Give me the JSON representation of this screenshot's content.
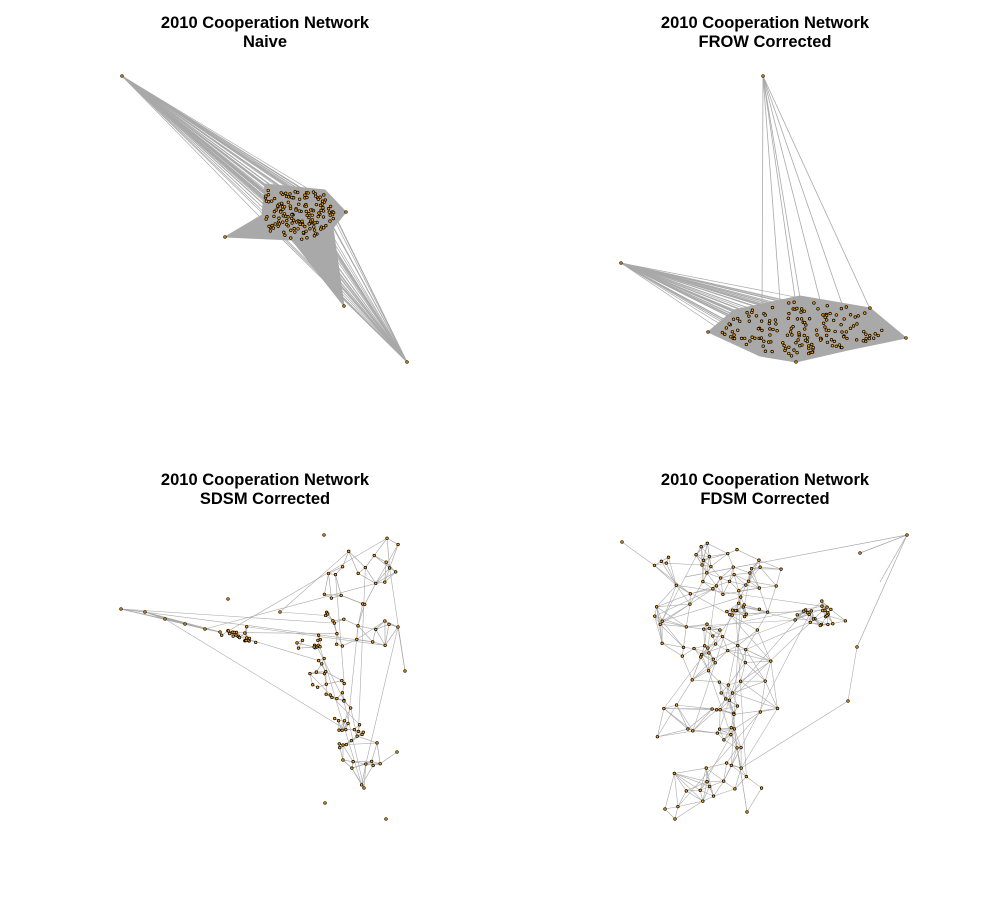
{
  "colors": {
    "edge": "#a9a9a9",
    "node": "#ffa500",
    "node_border": "#000000",
    "background": "#ffffff"
  },
  "panels": [
    {
      "title": "2010 Cooperation Network",
      "subtitle": "Naive"
    },
    {
      "title": "2010 Cooperation Network",
      "subtitle": "FROW Corrected"
    },
    {
      "title": "2010 Cooperation Network",
      "subtitle": "SDSM Corrected"
    },
    {
      "title": "2010 Cooperation Network",
      "subtitle": "FDSM Corrected"
    }
  ]
}
